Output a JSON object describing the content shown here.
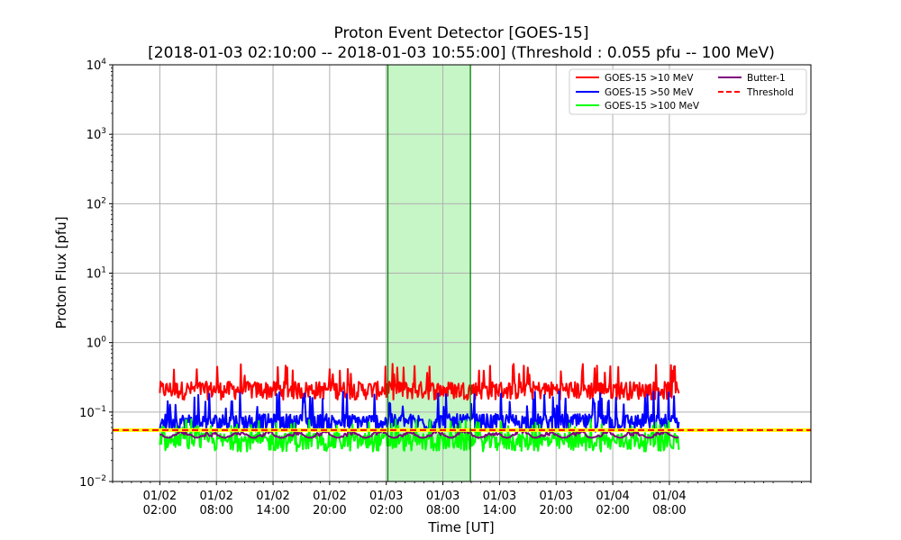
{
  "chart_data": {
    "type": "line",
    "title": "Proton Event Detector [GOES-15]",
    "subtitle": "[2018-01-03 02:10:00 -- 2018-01-03 10:55:00] (Threshold : 0.055 pfu -- 100 MeV)",
    "xlabel": "Time [UT]",
    "ylabel": "Proton Flux [pfu]",
    "yscale": "log",
    "ylim": [
      0.01,
      10000
    ],
    "xlim": [
      "2018-01-01 21:00",
      "2018-01-04 23:00"
    ],
    "yticks": [
      {
        "value": 0.01,
        "base": "10",
        "exp": "−2"
      },
      {
        "value": 0.1,
        "base": "10",
        "exp": "−1"
      },
      {
        "value": 1,
        "base": "10",
        "exp": "0"
      },
      {
        "value": 10,
        "base": "10",
        "exp": "1"
      },
      {
        "value": 100,
        "base": "10",
        "exp": "2"
      },
      {
        "value": 1000,
        "base": "10",
        "exp": "3"
      },
      {
        "value": 10000,
        "base": "10",
        "exp": "4"
      }
    ],
    "xticks": [
      {
        "time": "2018-01-02 02:00",
        "label": [
          "01/02",
          "02:00"
        ]
      },
      {
        "time": "2018-01-02 08:00",
        "label": [
          "01/02",
          "08:00"
        ]
      },
      {
        "time": "2018-01-02 14:00",
        "label": [
          "01/02",
          "14:00"
        ]
      },
      {
        "time": "2018-01-02 20:00",
        "label": [
          "01/02",
          "20:00"
        ]
      },
      {
        "time": "2018-01-03 02:00",
        "label": [
          "01/03",
          "02:00"
        ]
      },
      {
        "time": "2018-01-03 08:00",
        "label": [
          "01/03",
          "08:00"
        ]
      },
      {
        "time": "2018-01-03 14:00",
        "label": [
          "01/03",
          "14:00"
        ]
      },
      {
        "time": "2018-01-03 20:00",
        "label": [
          "01/03",
          "20:00"
        ]
      },
      {
        "time": "2018-01-04 02:00",
        "label": [
          "01/04",
          "02:00"
        ]
      },
      {
        "time": "2018-01-04 08:00",
        "label": [
          "01/04",
          "08:00"
        ]
      }
    ],
    "grid": true,
    "legend_position": "top-right",
    "event_window": {
      "start": "2018-01-03 02:10",
      "end": "2018-01-03 10:55",
      "color": "#c6f5c6",
      "edge_color": "#008000"
    },
    "threshold": {
      "name": "Threshold",
      "value": 0.055,
      "color": "#ff0000",
      "highlight_color": "#ffff00"
    },
    "data_range": {
      "start": "2018-01-02 02:00",
      "end": "2018-01-04 09:00"
    },
    "series": [
      {
        "name": "GOES-15 >10 MeV",
        "color": "#ff0000",
        "typical": 0.22,
        "low": 0.15,
        "high": 0.5
      },
      {
        "name": "GOES-15 >50 MeV",
        "color": "#0000ff",
        "typical": 0.075,
        "low": 0.052,
        "high": 0.2
      },
      {
        "name": "GOES-15 >100 MeV",
        "color": "#00ff00",
        "typical": 0.04,
        "low": 0.027,
        "high": 0.08
      },
      {
        "name": "Butter-1",
        "color": "#800080",
        "typical": 0.045,
        "low": 0.035,
        "high": 0.065
      }
    ],
    "legend": [
      {
        "label": "GOES-15 >10 MeV",
        "color": "#ff0000",
        "dash": false
      },
      {
        "label": "GOES-15 >50 MeV",
        "color": "#0000ff",
        "dash": false
      },
      {
        "label": "GOES-15 >100 MeV",
        "color": "#00ff00",
        "dash": false
      },
      {
        "label": "Butter-1",
        "color": "#800080",
        "dash": false
      },
      {
        "label": "Threshold",
        "color": "#ff0000",
        "dash": true
      }
    ]
  }
}
